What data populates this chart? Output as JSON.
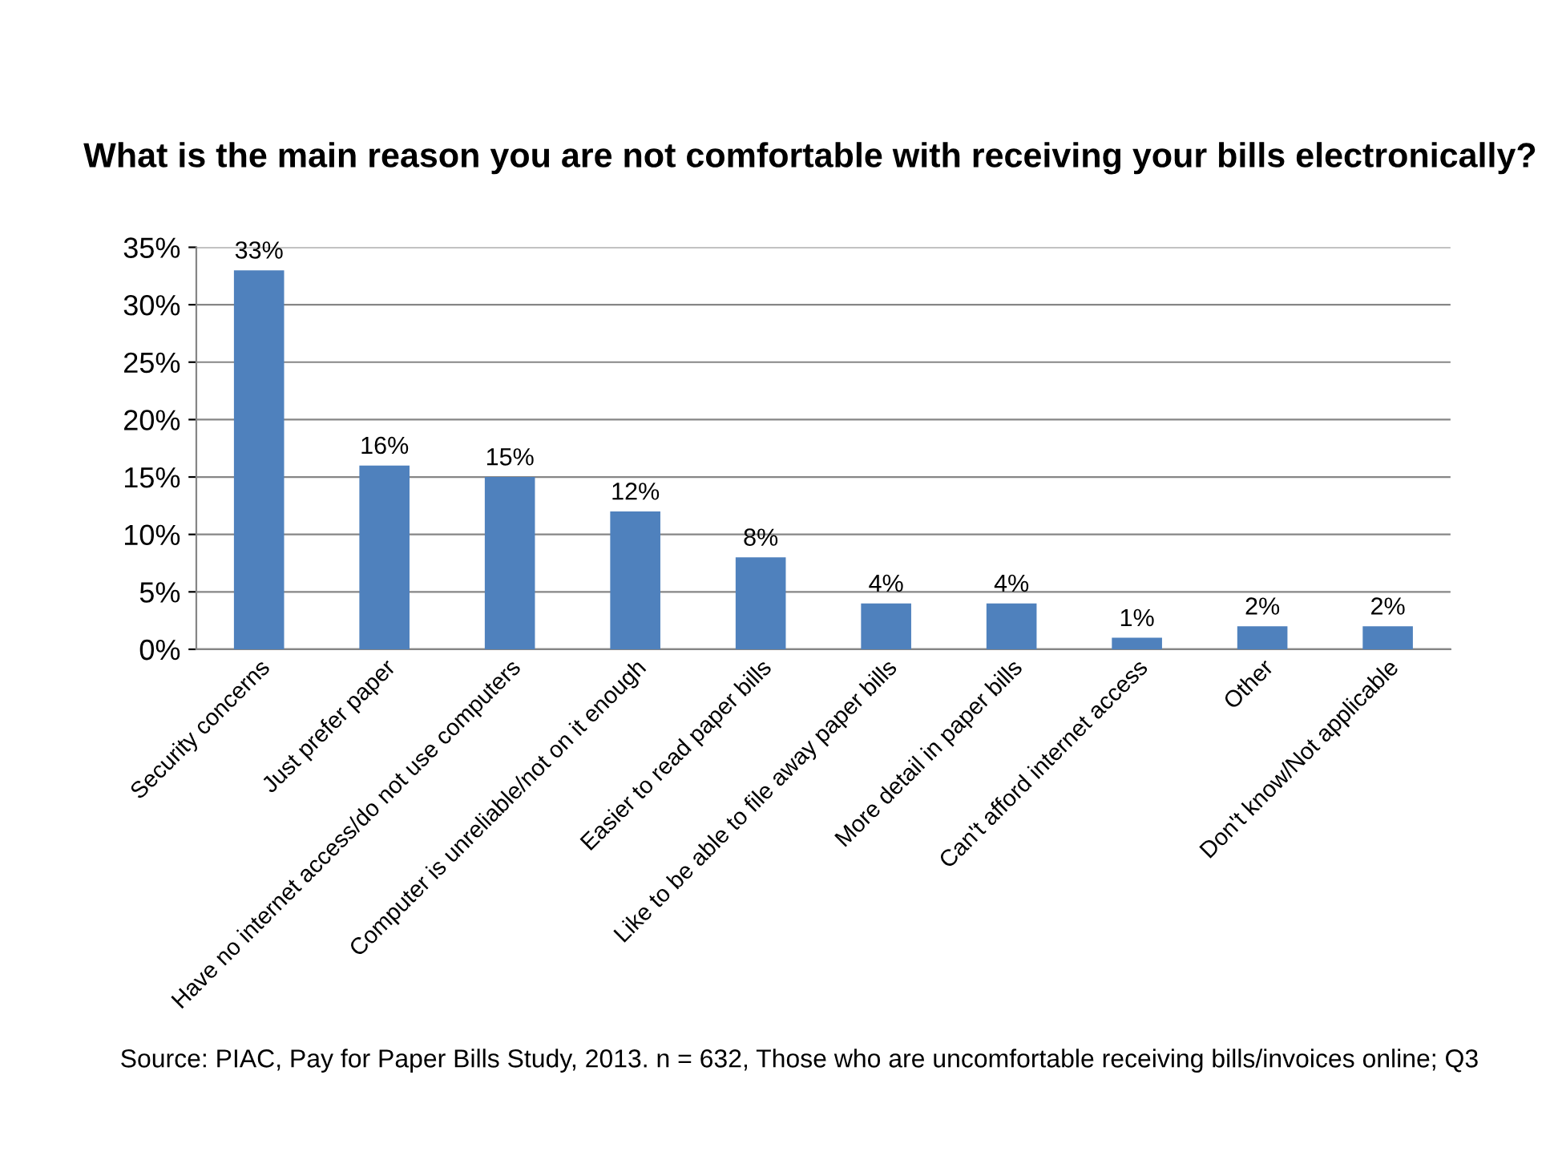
{
  "chart_data": {
    "type": "bar",
    "title": "What is the main reason you are not comfortable with receiving your bills electronically?",
    "categories": [
      "Security concerns",
      "Just prefer paper",
      "Have no internet access/do not use computers",
      "Computer is unreliable/not on it enough",
      "Easier to read paper bills",
      "Like to be able to file away paper bills",
      "More detail in paper bills",
      "Can't afford internet access",
      "Other",
      "Don't know/Not applicable"
    ],
    "values": [
      33,
      16,
      15,
      12,
      8,
      4,
      4,
      1,
      2,
      2
    ],
    "value_labels": [
      "33%",
      "16%",
      "15%",
      "12%",
      "8%",
      "4%",
      "4%",
      "1%",
      "2%",
      "2%"
    ],
    "color": "#4f81bd",
    "ylim": [
      0,
      35
    ],
    "yticks": [
      {
        "value": 0,
        "label": "0%"
      },
      {
        "value": 5,
        "label": "5%"
      },
      {
        "value": 10,
        "label": "10%"
      },
      {
        "value": 15,
        "label": "15%"
      },
      {
        "value": 20,
        "label": "20%"
      },
      {
        "value": 25,
        "label": "25%"
      },
      {
        "value": 30,
        "label": "30%"
      },
      {
        "value": 35,
        "label": "35%"
      }
    ],
    "grid": "y",
    "legend": false,
    "annotations": [
      "Source: PIAC, Pay for Paper Bills Study, 2013. n = 632, Those who are uncomfortable receiving bills/invoices online; Q3"
    ]
  }
}
